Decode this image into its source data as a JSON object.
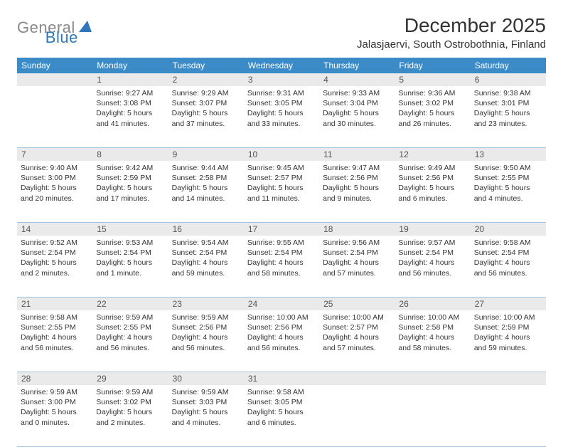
{
  "logo": {
    "gray": "General",
    "blue": "Blue"
  },
  "title": "December 2025",
  "location": "Jalasjaervi, South Ostrobothnia, Finland",
  "colors": {
    "header_bg": "#3b8bc9",
    "header_text": "#ffffff",
    "daynum_bg": "#eaeaea",
    "daynum_text": "#555555",
    "border": "#9ec5e3",
    "body_text": "#333333",
    "logo_gray": "#888888",
    "logo_blue": "#2f77b9"
  },
  "fonts": {
    "title_size": 28,
    "location_size": 15,
    "dow_size": 12,
    "daynum_size": 12,
    "cell_size": 10.5
  },
  "dow": [
    "Sunday",
    "Monday",
    "Tuesday",
    "Wednesday",
    "Thursday",
    "Friday",
    "Saturday"
  ],
  "weeks": [
    [
      {
        "n": "",
        "sunrise": "",
        "sunset": "",
        "dl1": "",
        "dl2": ""
      },
      {
        "n": "1",
        "sunrise": "Sunrise: 9:27 AM",
        "sunset": "Sunset: 3:08 PM",
        "dl1": "Daylight: 5 hours",
        "dl2": "and 41 minutes."
      },
      {
        "n": "2",
        "sunrise": "Sunrise: 9:29 AM",
        "sunset": "Sunset: 3:07 PM",
        "dl1": "Daylight: 5 hours",
        "dl2": "and 37 minutes."
      },
      {
        "n": "3",
        "sunrise": "Sunrise: 9:31 AM",
        "sunset": "Sunset: 3:05 PM",
        "dl1": "Daylight: 5 hours",
        "dl2": "and 33 minutes."
      },
      {
        "n": "4",
        "sunrise": "Sunrise: 9:33 AM",
        "sunset": "Sunset: 3:04 PM",
        "dl1": "Daylight: 5 hours",
        "dl2": "and 30 minutes."
      },
      {
        "n": "5",
        "sunrise": "Sunrise: 9:36 AM",
        "sunset": "Sunset: 3:02 PM",
        "dl1": "Daylight: 5 hours",
        "dl2": "and 26 minutes."
      },
      {
        "n": "6",
        "sunrise": "Sunrise: 9:38 AM",
        "sunset": "Sunset: 3:01 PM",
        "dl1": "Daylight: 5 hours",
        "dl2": "and 23 minutes."
      }
    ],
    [
      {
        "n": "7",
        "sunrise": "Sunrise: 9:40 AM",
        "sunset": "Sunset: 3:00 PM",
        "dl1": "Daylight: 5 hours",
        "dl2": "and 20 minutes."
      },
      {
        "n": "8",
        "sunrise": "Sunrise: 9:42 AM",
        "sunset": "Sunset: 2:59 PM",
        "dl1": "Daylight: 5 hours",
        "dl2": "and 17 minutes."
      },
      {
        "n": "9",
        "sunrise": "Sunrise: 9:44 AM",
        "sunset": "Sunset: 2:58 PM",
        "dl1": "Daylight: 5 hours",
        "dl2": "and 14 minutes."
      },
      {
        "n": "10",
        "sunrise": "Sunrise: 9:45 AM",
        "sunset": "Sunset: 2:57 PM",
        "dl1": "Daylight: 5 hours",
        "dl2": "and 11 minutes."
      },
      {
        "n": "11",
        "sunrise": "Sunrise: 9:47 AM",
        "sunset": "Sunset: 2:56 PM",
        "dl1": "Daylight: 5 hours",
        "dl2": "and 9 minutes."
      },
      {
        "n": "12",
        "sunrise": "Sunrise: 9:49 AM",
        "sunset": "Sunset: 2:56 PM",
        "dl1": "Daylight: 5 hours",
        "dl2": "and 6 minutes."
      },
      {
        "n": "13",
        "sunrise": "Sunrise: 9:50 AM",
        "sunset": "Sunset: 2:55 PM",
        "dl1": "Daylight: 5 hours",
        "dl2": "and 4 minutes."
      }
    ],
    [
      {
        "n": "14",
        "sunrise": "Sunrise: 9:52 AM",
        "sunset": "Sunset: 2:54 PM",
        "dl1": "Daylight: 5 hours",
        "dl2": "and 2 minutes."
      },
      {
        "n": "15",
        "sunrise": "Sunrise: 9:53 AM",
        "sunset": "Sunset: 2:54 PM",
        "dl1": "Daylight: 5 hours",
        "dl2": "and 1 minute."
      },
      {
        "n": "16",
        "sunrise": "Sunrise: 9:54 AM",
        "sunset": "Sunset: 2:54 PM",
        "dl1": "Daylight: 4 hours",
        "dl2": "and 59 minutes."
      },
      {
        "n": "17",
        "sunrise": "Sunrise: 9:55 AM",
        "sunset": "Sunset: 2:54 PM",
        "dl1": "Daylight: 4 hours",
        "dl2": "and 58 minutes."
      },
      {
        "n": "18",
        "sunrise": "Sunrise: 9:56 AM",
        "sunset": "Sunset: 2:54 PM",
        "dl1": "Daylight: 4 hours",
        "dl2": "and 57 minutes."
      },
      {
        "n": "19",
        "sunrise": "Sunrise: 9:57 AM",
        "sunset": "Sunset: 2:54 PM",
        "dl1": "Daylight: 4 hours",
        "dl2": "and 56 minutes."
      },
      {
        "n": "20",
        "sunrise": "Sunrise: 9:58 AM",
        "sunset": "Sunset: 2:54 PM",
        "dl1": "Daylight: 4 hours",
        "dl2": "and 56 minutes."
      }
    ],
    [
      {
        "n": "21",
        "sunrise": "Sunrise: 9:58 AM",
        "sunset": "Sunset: 2:55 PM",
        "dl1": "Daylight: 4 hours",
        "dl2": "and 56 minutes."
      },
      {
        "n": "22",
        "sunrise": "Sunrise: 9:59 AM",
        "sunset": "Sunset: 2:55 PM",
        "dl1": "Daylight: 4 hours",
        "dl2": "and 56 minutes."
      },
      {
        "n": "23",
        "sunrise": "Sunrise: 9:59 AM",
        "sunset": "Sunset: 2:56 PM",
        "dl1": "Daylight: 4 hours",
        "dl2": "and 56 minutes."
      },
      {
        "n": "24",
        "sunrise": "Sunrise: 10:00 AM",
        "sunset": "Sunset: 2:56 PM",
        "dl1": "Daylight: 4 hours",
        "dl2": "and 56 minutes."
      },
      {
        "n": "25",
        "sunrise": "Sunrise: 10:00 AM",
        "sunset": "Sunset: 2:57 PM",
        "dl1": "Daylight: 4 hours",
        "dl2": "and 57 minutes."
      },
      {
        "n": "26",
        "sunrise": "Sunrise: 10:00 AM",
        "sunset": "Sunset: 2:58 PM",
        "dl1": "Daylight: 4 hours",
        "dl2": "and 58 minutes."
      },
      {
        "n": "27",
        "sunrise": "Sunrise: 10:00 AM",
        "sunset": "Sunset: 2:59 PM",
        "dl1": "Daylight: 4 hours",
        "dl2": "and 59 minutes."
      }
    ],
    [
      {
        "n": "28",
        "sunrise": "Sunrise: 9:59 AM",
        "sunset": "Sunset: 3:00 PM",
        "dl1": "Daylight: 5 hours",
        "dl2": "and 0 minutes."
      },
      {
        "n": "29",
        "sunrise": "Sunrise: 9:59 AM",
        "sunset": "Sunset: 3:02 PM",
        "dl1": "Daylight: 5 hours",
        "dl2": "and 2 minutes."
      },
      {
        "n": "30",
        "sunrise": "Sunrise: 9:59 AM",
        "sunset": "Sunset: 3:03 PM",
        "dl1": "Daylight: 5 hours",
        "dl2": "and 4 minutes."
      },
      {
        "n": "31",
        "sunrise": "Sunrise: 9:58 AM",
        "sunset": "Sunset: 3:05 PM",
        "dl1": "Daylight: 5 hours",
        "dl2": "and 6 minutes."
      },
      {
        "n": "",
        "sunrise": "",
        "sunset": "",
        "dl1": "",
        "dl2": ""
      },
      {
        "n": "",
        "sunrise": "",
        "sunset": "",
        "dl1": "",
        "dl2": ""
      },
      {
        "n": "",
        "sunrise": "",
        "sunset": "",
        "dl1": "",
        "dl2": ""
      }
    ]
  ]
}
